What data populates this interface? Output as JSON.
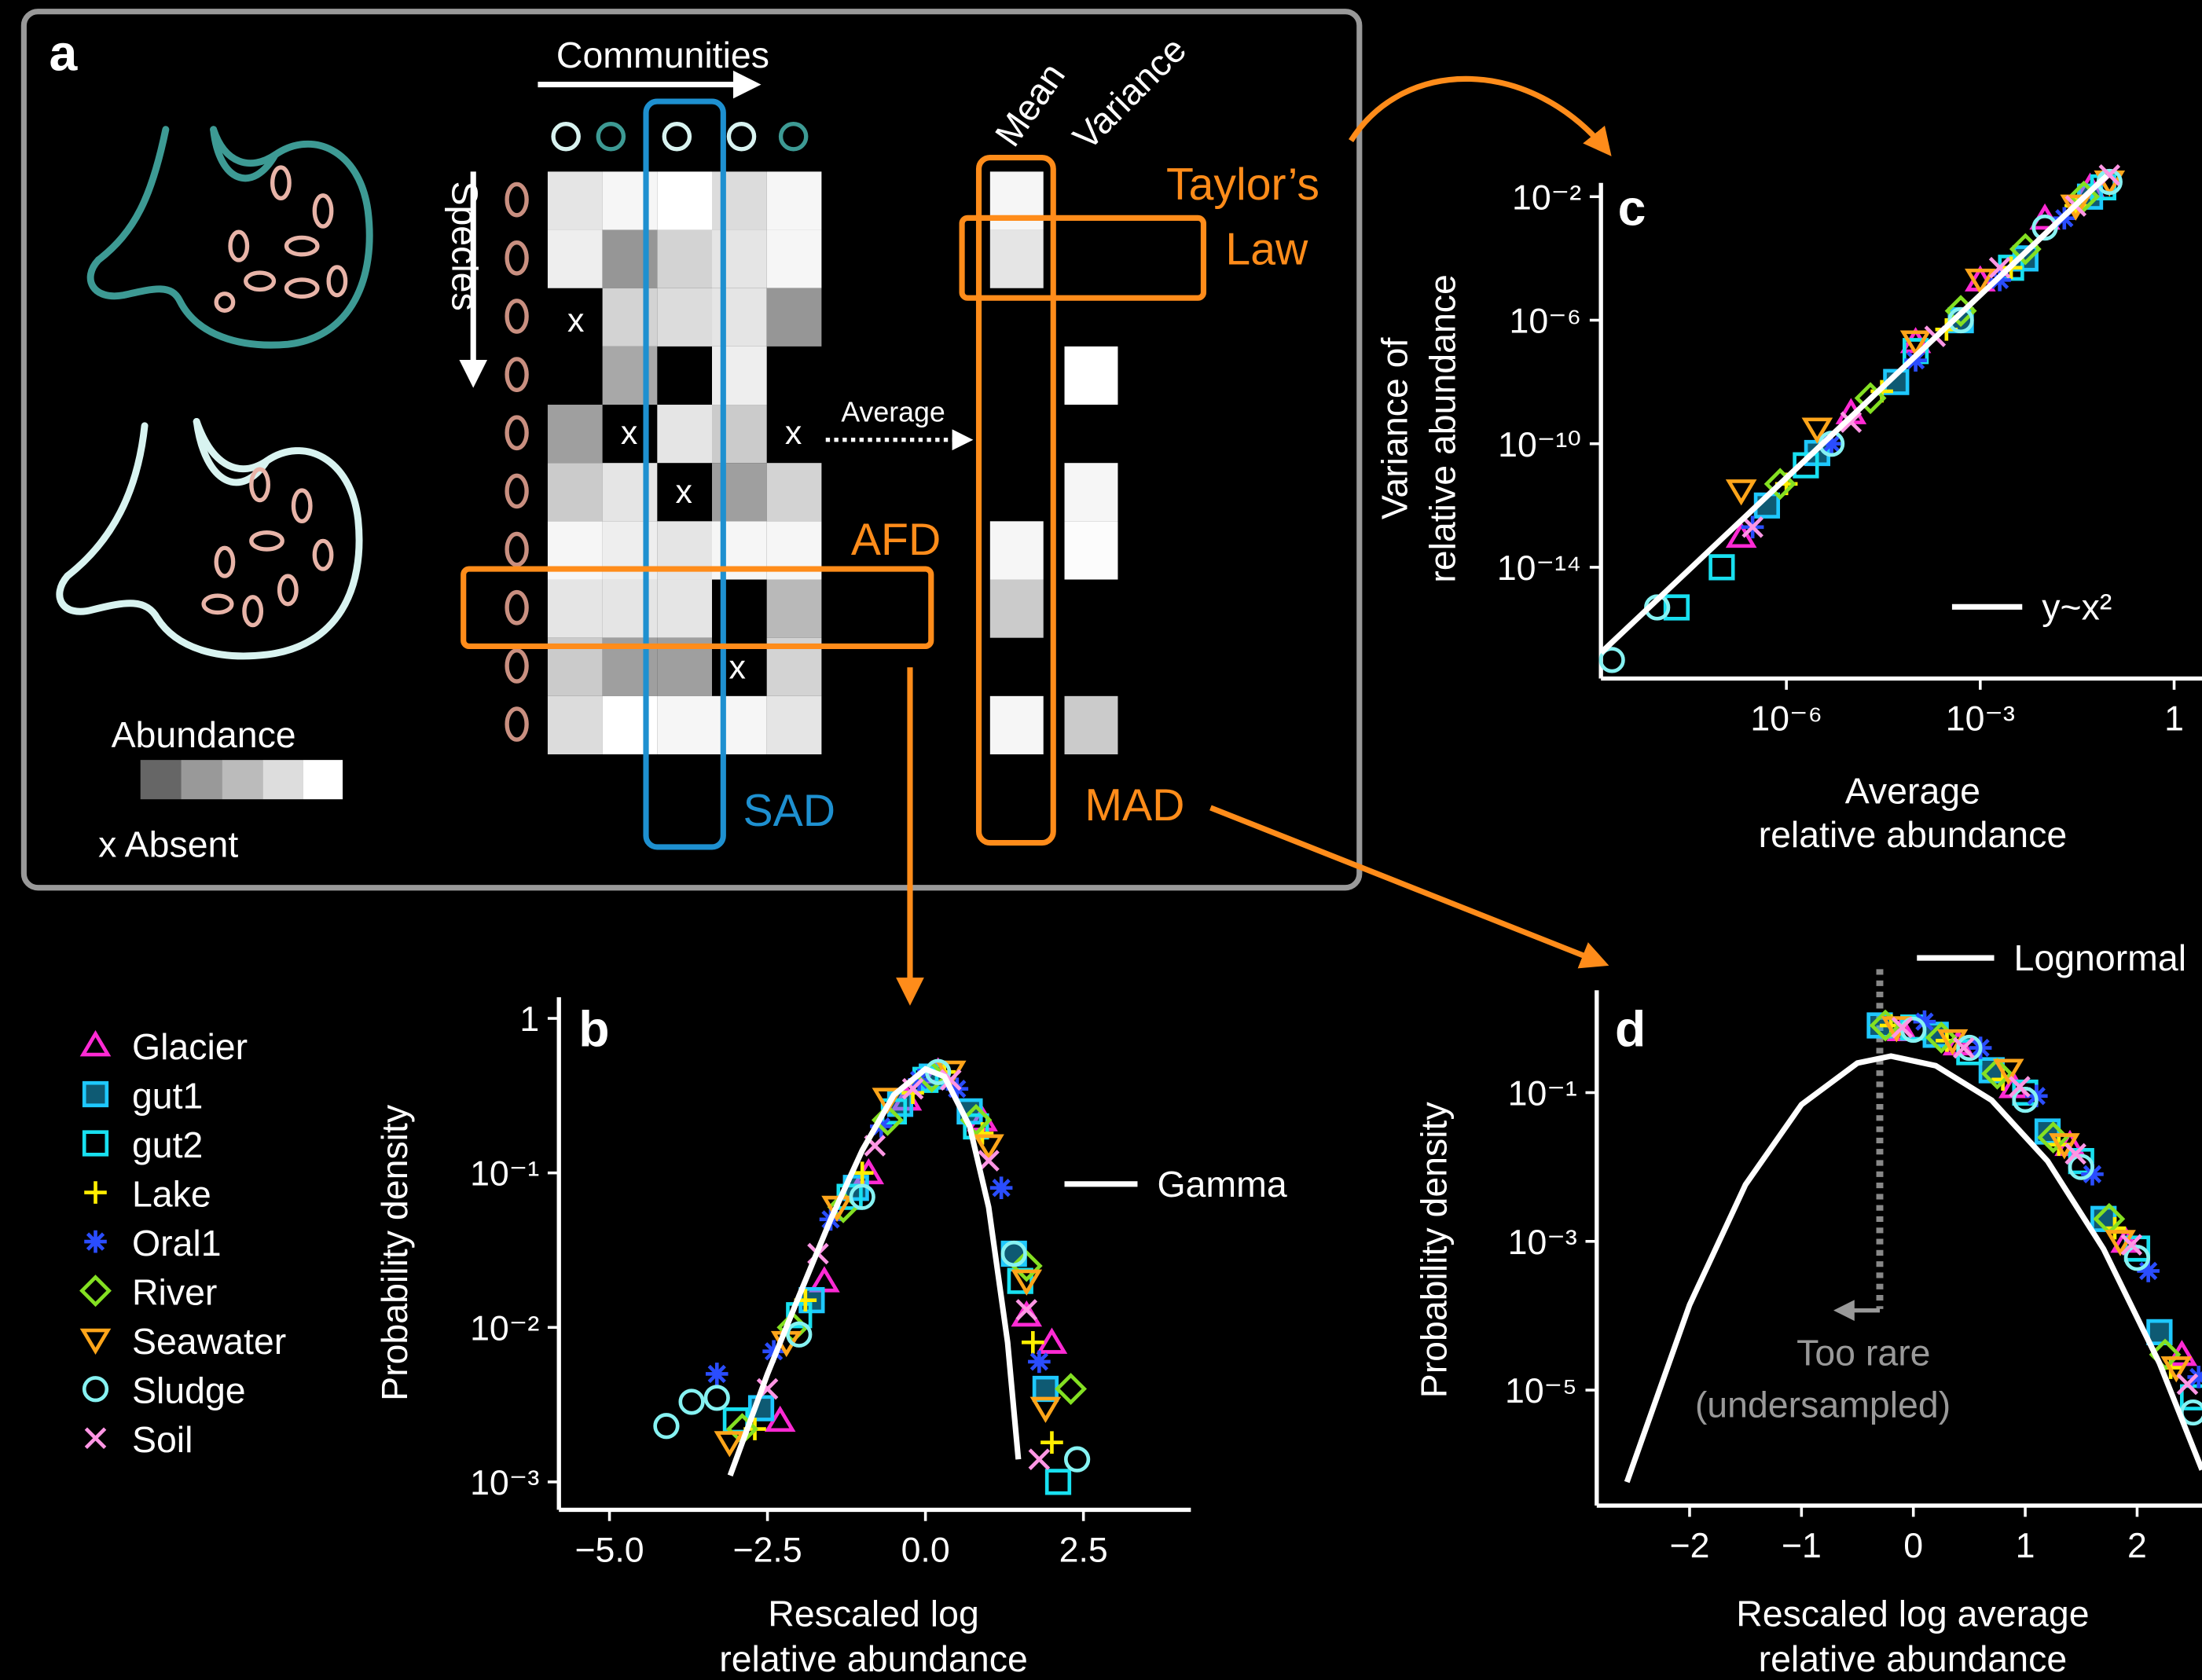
{
  "panel_a": {
    "label": "a",
    "communities": "Communities",
    "species": "Species",
    "mean": "Mean",
    "variance": "Variance",
    "taylors_law": [
      "Taylor’s",
      "Law"
    ],
    "average": "Average",
    "afd": "AFD",
    "sad": "SAD",
    "mad": "MAD",
    "abundance": "Abundance",
    "absent": "x Absent",
    "absent_mark": "x"
  },
  "chart_data": [
    {
      "type": "scatter",
      "panel": "b",
      "xlabel": [
        "Rescaled log",
        "relative abundance"
      ],
      "ylabel": [
        "Probability density"
      ],
      "xscale": "linear",
      "yscale": "log",
      "xlim": [
        -5.8,
        4.2
      ],
      "ylim": [
        0.00066,
        1.37
      ],
      "xticks": [
        {
          "value": -5,
          "label": "−5.0"
        },
        {
          "value": -2.5,
          "label": "−2.5"
        },
        {
          "value": 0,
          "label": "0.0"
        },
        2.5
      ],
      "yticks": [
        1,
        {
          "value": 0.1,
          "label": "10⁻¹"
        },
        {
          "value": 0.01,
          "label": "10⁻²"
        },
        {
          "value": 0.001,
          "label": "10⁻³"
        }
      ],
      "series": [
        {
          "name": "Glacier",
          "color": "#ff2ad4",
          "marker": "triangle",
          "x": [
            -2.3,
            -1.6,
            -0.9,
            -0.3,
            0.2,
            0.9,
            1.6,
            2.0
          ],
          "values": [
            0.0025,
            0.02,
            0.1,
            0.3,
            0.45,
            0.22,
            0.012,
            0.008
          ]
        },
        {
          "name": "gut1",
          "color": "#1ec8ff",
          "marker": "squaredot",
          "x": [
            -2.6,
            -1.8,
            -1.1,
            -0.4,
            0.1,
            0.7,
            1.4,
            1.9
          ],
          "values": [
            0.003,
            0.015,
            0.08,
            0.28,
            0.42,
            0.25,
            0.03,
            0.004
          ]
        },
        {
          "name": "gut2",
          "color": "#18e0f0",
          "marker": "square",
          "x": [
            -3.0,
            -2.0,
            -1.2,
            -0.5,
            0.0,
            0.8,
            1.5,
            2.1
          ],
          "values": [
            0.0025,
            0.012,
            0.07,
            0.25,
            0.4,
            0.2,
            0.02,
            0.001
          ]
        },
        {
          "name": "Lake",
          "color": "#ffee00",
          "marker": "plus",
          "x": [
            -2.7,
            -1.9,
            -1.0,
            -0.2,
            0.3,
            0.9,
            1.7,
            2.0
          ],
          "values": [
            0.0022,
            0.015,
            0.1,
            0.33,
            0.45,
            0.18,
            0.008,
            0.0018
          ]
        },
        {
          "name": "Oral1",
          "color": "#2a4dff",
          "marker": "asterisk",
          "x": [
            -3.3,
            -2.4,
            -1.5,
            -0.7,
            -0.1,
            0.5,
            1.2,
            1.8
          ],
          "values": [
            0.005,
            0.007,
            0.05,
            0.2,
            0.4,
            0.35,
            0.08,
            0.006
          ]
        },
        {
          "name": "River",
          "color": "#84e022",
          "marker": "diamond",
          "x": [
            -2.9,
            -2.1,
            -1.3,
            -0.6,
            0.1,
            0.8,
            1.6,
            2.3
          ],
          "values": [
            0.0022,
            0.01,
            0.06,
            0.22,
            0.42,
            0.22,
            0.025,
            0.004
          ]
        },
        {
          "name": "Seawater",
          "color": "#ffa51a",
          "marker": "downtriangle",
          "x": [
            -3.1,
            -2.2,
            -1.4,
            -0.6,
            0.4,
            1.0,
            1.6,
            1.9
          ],
          "values": [
            0.0018,
            0.008,
            0.06,
            0.3,
            0.45,
            0.15,
            0.02,
            0.003
          ]
        },
        {
          "name": "Sludge",
          "color": "#86f2f2",
          "marker": "circle",
          "x": [
            -4.1,
            -3.7,
            -3.3,
            -2.0,
            -1.0,
            0.2,
            1.4,
            2.4
          ],
          "values": [
            0.0023,
            0.0033,
            0.0035,
            0.009,
            0.07,
            0.45,
            0.03,
            0.0014
          ]
        },
        {
          "name": "Soil",
          "color": "#ff96e4",
          "marker": "cross",
          "x": [
            -2.5,
            -1.7,
            -0.8,
            -0.2,
            0.4,
            1.0,
            1.6,
            1.8
          ],
          "values": [
            0.004,
            0.03,
            0.15,
            0.35,
            0.4,
            0.12,
            0.013,
            0.0014
          ]
        }
      ],
      "fit": {
        "name": "Gamma",
        "color": "#ffffff",
        "x": [
          -3.09,
          -2.5,
          -2,
          -1.5,
          -1,
          -0.5,
          0,
          0.3,
          0.7,
          1,
          1.3,
          1.47
        ],
        "values": [
          0.0011,
          0.005,
          0.016,
          0.05,
          0.14,
          0.32,
          0.47,
          0.42,
          0.2,
          0.06,
          0.008,
          0.0014
        ]
      }
    },
    {
      "type": "scatter",
      "panel": "c",
      "xlabel": [
        "Average",
        "relative abundance"
      ],
      "ylabel": [
        "Variance of",
        "relative abundance"
      ],
      "xscale": "log",
      "yscale": "log",
      "xlim": [
        1.35e-09,
        2.7
      ],
      "ylim": [
        2.5e-18,
        0.028
      ],
      "xticks": [
        {
          "value": 1e-06,
          "label": "10⁻⁶"
        },
        {
          "value": 0.001,
          "label": "10⁻³"
        },
        1
      ],
      "yticks": [
        {
          "value": 0.01,
          "label": "10⁻²"
        },
        {
          "value": 1e-06,
          "label": "10⁻⁶"
        },
        {
          "value": 1e-10,
          "label": "10⁻¹⁰"
        },
        {
          "value": 1e-14,
          "label": "10⁻¹⁴"
        }
      ],
      "series": [
        {
          "color": "#ff2ad4",
          "marker": "triangle",
          "x": [
            2e-07,
            1e-05,
            0.0001,
            0.001,
            0.01,
            0.05
          ],
          "values": [
            1e-13,
            1e-09,
            2e-07,
            2e-05,
            0.002,
            0.02
          ]
        },
        {
          "color": "#1ec8ff",
          "marker": "squaredot",
          "x": [
            5e-07,
            3e-06,
            5e-05,
            0.0005,
            0.005,
            0.05
          ],
          "values": [
            1e-12,
            5e-11,
            1e-08,
            1e-06,
            0.0001,
            0.01
          ]
        },
        {
          "color": "#18e0f0",
          "marker": "square",
          "x": [
            2e-08,
            1e-07,
            2e-06,
            0.0001,
            0.003,
            0.08
          ],
          "values": [
            5e-16,
            1e-14,
            2e-11,
            1e-07,
            5e-05,
            0.02
          ]
        },
        {
          "color": "#ffee00",
          "marker": "plus",
          "x": [
            1e-06,
            3e-05,
            0.0003,
            0.003,
            0.03
          ],
          "values": [
            5e-12,
            5e-09,
            5e-07,
            5e-05,
            0.005
          ]
        },
        {
          "color": "#2a4dff",
          "marker": "asterisk",
          "x": [
            3e-07,
            5e-06,
            0.0001,
            0.002,
            0.02
          ],
          "values": [
            2e-13,
            1e-10,
            5e-08,
            2e-05,
            0.002
          ]
        },
        {
          "color": "#84e022",
          "marker": "diamond",
          "x": [
            8e-07,
            2e-05,
            0.0005,
            0.005,
            0.04
          ],
          "values": [
            5e-12,
            3e-09,
            2e-06,
            0.0002,
            0.01
          ]
        },
        {
          "color": "#ffa51a",
          "marker": "downtriangle",
          "x": [
            2e-07,
            3e-06,
            0.0001,
            0.001,
            0.03,
            0.1
          ],
          "values": [
            3e-12,
            3e-10,
            2e-07,
            2e-05,
            0.005,
            0.03
          ]
        },
        {
          "color": "#86f2f2",
          "marker": "circle",
          "x": [
            2e-09,
            1e-08,
            5e-06,
            0.0005,
            0.01,
            0.1
          ],
          "values": [
            1e-17,
            5e-16,
            1e-10,
            1e-06,
            0.001,
            0.03
          ]
        },
        {
          "color": "#ff96e4",
          "marker": "cross",
          "x": [
            3e-07,
            1e-05,
            0.0002,
            0.002,
            0.03,
            0.1
          ],
          "values": [
            2e-13,
            5e-10,
            3e-07,
            5e-05,
            0.005,
            0.05
          ]
        }
      ],
      "fit": {
        "name": "y~x²",
        "color": "#ffffff",
        "x": [
          1.35e-09,
          0.091
        ],
        "values": [
          1.7e-17,
          0.048
        ]
      }
    },
    {
      "type": "scatter",
      "panel": "d",
      "xlabel": [
        "Rescaled log average",
        "relative abundance"
      ],
      "ylabel": [
        "Probability density"
      ],
      "xscale": "linear",
      "yscale": "log",
      "xlim": [
        -2.83,
        2.58
      ],
      "ylim": [
        2.8e-07,
        2.38
      ],
      "xticks": [
        {
          "value": -2,
          "label": "−2"
        },
        {
          "value": -1,
          "label": "−1"
        },
        0,
        1,
        2
      ],
      "yticks": [
        {
          "value": 0.1,
          "label": "10⁻¹"
        },
        {
          "value": 0.001,
          "label": "10⁻³"
        },
        {
          "value": 1e-05,
          "label": "10⁻⁵"
        }
      ],
      "series": [
        {
          "color": "#ff2ad4",
          "marker": "triangle",
          "x": [
            -0.1,
            0.4,
            0.9,
            1.4,
            1.9,
            2.4
          ],
          "values": [
            0.7,
            0.45,
            0.12,
            0.02,
            0.001,
            3e-05
          ]
        },
        {
          "color": "#1ec8ff",
          "marker": "squaredot",
          "x": [
            -0.3,
            0.2,
            0.7,
            1.2,
            1.7,
            2.2
          ],
          "values": [
            0.8,
            0.6,
            0.2,
            0.03,
            0.002,
            6e-05
          ]
        },
        {
          "color": "#18e0f0",
          "marker": "square",
          "x": [
            0.0,
            0.5,
            1.0,
            1.5,
            2.0,
            2.5
          ],
          "values": [
            0.75,
            0.35,
            0.1,
            0.012,
            0.0008,
            8e-06
          ]
        },
        {
          "color": "#ffee00",
          "marker": "plus",
          "x": [
            -0.2,
            0.3,
            0.8,
            1.3,
            1.8,
            2.3
          ],
          "values": [
            0.8,
            0.5,
            0.15,
            0.02,
            0.0015,
            2e-05
          ]
        },
        {
          "color": "#2a4dff",
          "marker": "asterisk",
          "x": [
            0.1,
            0.6,
            1.1,
            1.6,
            2.1,
            2.55
          ],
          "values": [
            0.9,
            0.4,
            0.09,
            0.008,
            0.0004,
            1.5e-05
          ]
        },
        {
          "color": "#84e022",
          "marker": "diamond",
          "x": [
            -0.25,
            0.25,
            0.75,
            1.25,
            1.75,
            2.25
          ],
          "values": [
            0.8,
            0.55,
            0.18,
            0.025,
            0.002,
            3e-05
          ]
        },
        {
          "color": "#ffa51a",
          "marker": "downtriangle",
          "x": [
            -0.15,
            0.35,
            0.85,
            1.35,
            1.85,
            2.35
          ],
          "values": [
            0.75,
            0.5,
            0.2,
            0.02,
            0.001,
            2e-05
          ]
        },
        {
          "color": "#86f2f2",
          "marker": "circle",
          "x": [
            0.0,
            0.5,
            1.0,
            1.5,
            2.0,
            2.5
          ],
          "values": [
            0.7,
            0.4,
            0.08,
            0.01,
            0.0006,
            5e-06
          ]
        },
        {
          "color": "#ff96e4",
          "marker": "cross",
          "x": [
            -0.1,
            0.45,
            0.95,
            1.45,
            1.95,
            2.45
          ],
          "values": [
            0.75,
            0.4,
            0.12,
            0.015,
            0.0009,
            1.2e-05
          ]
        }
      ],
      "fit": {
        "name": "Lognormal",
        "color": "#ffffff",
        "x": [
          -2.56,
          -2,
          -1.5,
          -1,
          -0.5,
          -0.2,
          0.2,
          0.7,
          1.2,
          1.7,
          2.2,
          2.58
        ],
        "values": [
          5.8e-07,
          0.00014,
          0.0058,
          0.069,
          0.25,
          0.31,
          0.23,
          0.079,
          0.012,
          0.00079,
          2.3e-05,
          8.5e-07
        ]
      },
      "threshold_x": -0.3,
      "annotation": [
        "Too rare",
        "(undersampled)"
      ]
    }
  ]
}
